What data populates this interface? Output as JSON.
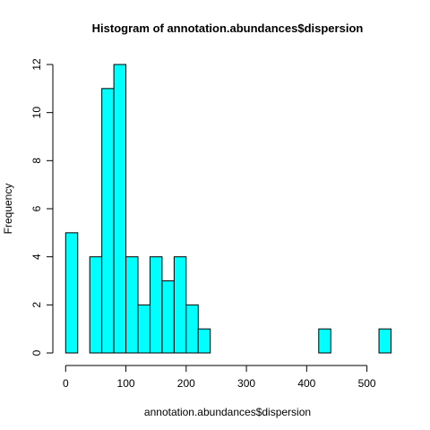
{
  "chart_data": {
    "type": "bar",
    "title": "Histogram of annotation.abundances$dispersion",
    "xlabel": "annotation.abundances$dispersion",
    "ylabel": "Frequency",
    "bin_width": 20,
    "bins": [
      {
        "start": 0,
        "end": 20,
        "count": 5
      },
      {
        "start": 20,
        "end": 40,
        "count": 0
      },
      {
        "start": 40,
        "end": 60,
        "count": 4
      },
      {
        "start": 60,
        "end": 80,
        "count": 11
      },
      {
        "start": 80,
        "end": 100,
        "count": 12
      },
      {
        "start": 100,
        "end": 120,
        "count": 4
      },
      {
        "start": 120,
        "end": 140,
        "count": 2
      },
      {
        "start": 140,
        "end": 160,
        "count": 4
      },
      {
        "start": 160,
        "end": 180,
        "count": 3
      },
      {
        "start": 180,
        "end": 200,
        "count": 4
      },
      {
        "start": 200,
        "end": 220,
        "count": 2
      },
      {
        "start": 220,
        "end": 240,
        "count": 1
      },
      {
        "start": 240,
        "end": 260,
        "count": 0
      },
      {
        "start": 260,
        "end": 280,
        "count": 0
      },
      {
        "start": 280,
        "end": 300,
        "count": 0
      },
      {
        "start": 300,
        "end": 320,
        "count": 0
      },
      {
        "start": 320,
        "end": 340,
        "count": 0
      },
      {
        "start": 340,
        "end": 360,
        "count": 0
      },
      {
        "start": 360,
        "end": 380,
        "count": 0
      },
      {
        "start": 380,
        "end": 400,
        "count": 0
      },
      {
        "start": 400,
        "end": 420,
        "count": 0
      },
      {
        "start": 420,
        "end": 440,
        "count": 1
      },
      {
        "start": 440,
        "end": 460,
        "count": 0
      },
      {
        "start": 460,
        "end": 480,
        "count": 0
      },
      {
        "start": 480,
        "end": 500,
        "count": 0
      },
      {
        "start": 500,
        "end": 520,
        "count": 0
      },
      {
        "start": 520,
        "end": 540,
        "count": 1
      }
    ],
    "xlim": [
      0,
      540
    ],
    "ylim": [
      0,
      12
    ],
    "x_ticks": [
      0,
      100,
      200,
      300,
      400,
      500
    ],
    "y_ticks": [
      0,
      2,
      4,
      6,
      8,
      10,
      12
    ],
    "bar_color": "#00FFFF",
    "grid": false,
    "legend": "none"
  }
}
